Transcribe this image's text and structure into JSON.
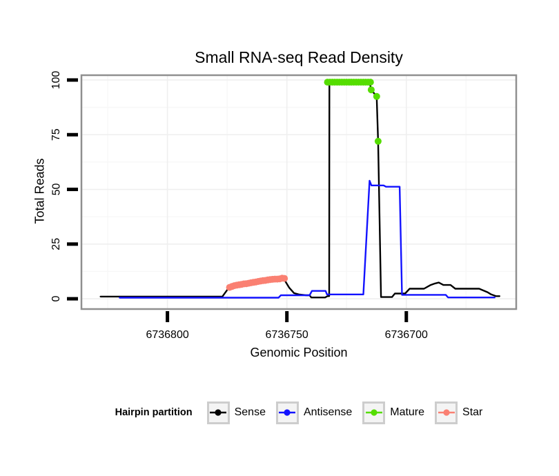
{
  "chart_data": {
    "type": "line",
    "title": "Small RNA-seq Read Density",
    "xlabel": "Genomic Position",
    "ylabel": "Total Reads",
    "x_ticks": [
      6736800,
      6736750,
      6736700
    ],
    "x_tick_labels": [
      "6736800",
      "6736750",
      "6736700"
    ],
    "y_ticks": [
      0,
      25,
      50,
      75,
      100
    ],
    "y_tick_labels": [
      "0",
      "25",
      "50",
      "75",
      "100"
    ],
    "x_minor_ticks": [
      6736825,
      6736775,
      6736725,
      6736675
    ],
    "y_minor_ticks": [
      12.5,
      37.5,
      62.5,
      87.5
    ],
    "xlim": [
      6736836,
      6736654
    ],
    "ylim": [
      -4.7,
      102.2
    ],
    "x_axis_reversed": true,
    "grid": "on",
    "legend": {
      "title": "Hairpin partition",
      "position": "bottom"
    },
    "style": {
      "panel_border": "#8f8f8f",
      "panel_background": "#ffffff",
      "tick_color": "#000000",
      "grid_major": "#efefef",
      "grid_minor": "#f7f7f7"
    },
    "series": [
      {
        "name": "Sense",
        "color": "#000000",
        "draw": "line",
        "points": [
          [
            6736828,
            1
          ],
          [
            6736777,
            1
          ],
          [
            6736774.5,
            4.8
          ],
          [
            6736772,
            6
          ],
          [
            6736768,
            6.6
          ],
          [
            6736764,
            7.4
          ],
          [
            6736760,
            8.4
          ],
          [
            6736757,
            8.8
          ],
          [
            6736754,
            9
          ],
          [
            6736752,
            9.5
          ],
          [
            6736751,
            8.6
          ],
          [
            6736749,
            5
          ],
          [
            6736747,
            2.6
          ],
          [
            6736745,
            2
          ],
          [
            6736742,
            1.6
          ],
          [
            6736740.5,
            1.6
          ],
          [
            6736739.8,
            0.6
          ],
          [
            6736734,
            0.6
          ],
          [
            6736733,
            1.2
          ],
          [
            6736732.3,
            1.2
          ],
          [
            6736732.2,
            98.6
          ],
          [
            6736715.3,
            98.6
          ],
          [
            6736714.7,
            95.5
          ],
          [
            6736712.4,
            92.5
          ],
          [
            6736711.8,
            72
          ],
          [
            6736710.6,
            0.8
          ],
          [
            6736706,
            0.8
          ],
          [
            6736704.8,
            2.4
          ],
          [
            6736700.5,
            2.4
          ],
          [
            6736698.6,
            4.6
          ],
          [
            6736692.6,
            4.6
          ],
          [
            6736690,
            6.2
          ],
          [
            6736688,
            7
          ],
          [
            6736686.4,
            7.4
          ],
          [
            6736684.5,
            6.3
          ],
          [
            6736681.5,
            6.3
          ],
          [
            6736679.5,
            4.6
          ],
          [
            6736669.5,
            4.6
          ],
          [
            6736666,
            3
          ],
          [
            6736664.5,
            2
          ],
          [
            6736662.5,
            1.2
          ],
          [
            6736661,
            1.2
          ]
        ]
      },
      {
        "name": "Antisense",
        "color": "#1212ff",
        "draw": "line",
        "points": [
          [
            6736820,
            0.5
          ],
          [
            6736753.5,
            0.5
          ],
          [
            6736752.5,
            1.6
          ],
          [
            6736740.5,
            1.6
          ],
          [
            6736739.5,
            3.6
          ],
          [
            6736733.8,
            3.6
          ],
          [
            6736733.2,
            2
          ],
          [
            6736718,
            2
          ],
          [
            6736715.4,
            54
          ],
          [
            6736714.6,
            51.8
          ],
          [
            6736709.5,
            51.8
          ],
          [
            6736708.5,
            51.2
          ],
          [
            6736702.8,
            51.2
          ],
          [
            6736701.8,
            1.8
          ],
          [
            6736683.5,
            1.8
          ],
          [
            6736682.5,
            0.6
          ],
          [
            6736663,
            0.6
          ]
        ]
      },
      {
        "name": "Mature",
        "color": "#55dd00",
        "draw": "points",
        "points": [
          [
            6736733,
            99
          ],
          [
            6736732,
            99
          ],
          [
            6736731,
            99
          ],
          [
            6736730,
            99
          ],
          [
            6736729,
            99
          ],
          [
            6736728,
            99
          ],
          [
            6736727,
            99
          ],
          [
            6736726,
            99
          ],
          [
            6736725,
            99
          ],
          [
            6736724,
            99
          ],
          [
            6736723,
            99
          ],
          [
            6736722,
            99
          ],
          [
            6736721,
            99
          ],
          [
            6736720,
            99
          ],
          [
            6736719,
            99
          ],
          [
            6736718,
            99
          ],
          [
            6736717,
            99
          ],
          [
            6736716,
            99
          ],
          [
            6736715,
            99
          ],
          [
            6736714.7,
            95.5
          ],
          [
            6736712.4,
            92.5
          ],
          [
            6736711.8,
            72
          ]
        ]
      },
      {
        "name": "Star",
        "color": "#fa8072",
        "draw": "points",
        "points": [
          [
            6736774,
            5.2
          ],
          [
            6736773,
            5.6
          ],
          [
            6736772,
            6.0
          ],
          [
            6736771,
            6.2
          ],
          [
            6736770,
            6.4
          ],
          [
            6736769,
            6.6
          ],
          [
            6736768,
            6.8
          ],
          [
            6736767,
            6.9
          ],
          [
            6736766,
            7.1
          ],
          [
            6736765,
            7.3
          ],
          [
            6736764,
            7.5
          ],
          [
            6736763,
            7.7
          ],
          [
            6736762,
            7.9
          ],
          [
            6736761,
            8.1
          ],
          [
            6736760,
            8.3
          ],
          [
            6736759,
            8.4
          ],
          [
            6736758,
            8.6
          ],
          [
            6736757,
            8.8
          ],
          [
            6736756,
            8.9
          ],
          [
            6736755,
            9.0
          ],
          [
            6736754,
            9.0
          ],
          [
            6736753,
            9.1
          ],
          [
            6736752,
            9.4
          ],
          [
            6736751,
            9.3
          ]
        ]
      }
    ]
  }
}
